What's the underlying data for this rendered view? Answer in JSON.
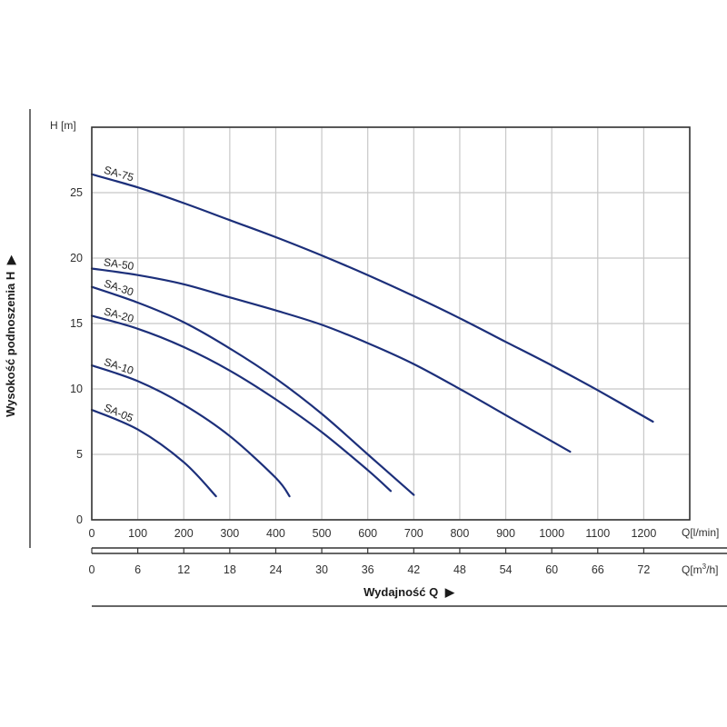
{
  "chart_data": {
    "type": "line",
    "y_axis": {
      "label": "H [m]",
      "title": "Wysokość podnoszenia H",
      "ticks": [
        0,
        5,
        10,
        15,
        20,
        25
      ],
      "ylim": [
        0,
        30
      ]
    },
    "x_axis_primary": {
      "unit": "Q[l/min]",
      "ticks": [
        0,
        100,
        200,
        300,
        400,
        500,
        600,
        700,
        800,
        900,
        1000,
        1100,
        1200
      ],
      "xlim": [
        0,
        1300
      ]
    },
    "x_axis_secondary": {
      "unit_prefix": "Q[m",
      "unit_sup": "3",
      "unit_suffix": "/h]",
      "ticks": [
        0,
        6,
        12,
        18,
        24,
        30,
        36,
        42,
        48,
        54,
        60,
        66,
        72
      ]
    },
    "x_title": "Wydajność Q",
    "grid": true,
    "colors": {
      "curve": "#1c2f7a",
      "grid": "#c8c8c8",
      "frame": "#333333"
    },
    "series": [
      {
        "name": "SA-75",
        "x": [
          0,
          100,
          200,
          300,
          400,
          500,
          600,
          700,
          800,
          900,
          1000,
          1100,
          1220
        ],
        "y": [
          26.4,
          25.4,
          24.2,
          22.9,
          21.6,
          20.2,
          18.7,
          17.1,
          15.4,
          13.6,
          11.8,
          9.9,
          7.5
        ]
      },
      {
        "name": "SA-50",
        "x": [
          0,
          100,
          200,
          300,
          400,
          500,
          600,
          700,
          800,
          900,
          1000,
          1040
        ],
        "y": [
          19.2,
          18.7,
          18.0,
          17.0,
          16.0,
          14.9,
          13.5,
          11.9,
          10.0,
          8.0,
          6.0,
          5.2
        ]
      },
      {
        "name": "SA-30",
        "x": [
          0,
          100,
          200,
          300,
          400,
          500,
          600,
          700
        ],
        "y": [
          17.8,
          16.6,
          15.1,
          13.1,
          10.8,
          8.1,
          5.0,
          1.9
        ]
      },
      {
        "name": "SA-20",
        "x": [
          0,
          100,
          200,
          300,
          400,
          500,
          600,
          650
        ],
        "y": [
          15.6,
          14.6,
          13.2,
          11.4,
          9.2,
          6.7,
          3.8,
          2.2
        ]
      },
      {
        "name": "SA-10",
        "x": [
          0,
          100,
          200,
          300,
          400,
          430
        ],
        "y": [
          11.8,
          10.6,
          8.8,
          6.4,
          3.2,
          1.8
        ]
      },
      {
        "name": "SA-05",
        "x": [
          0,
          100,
          200,
          270
        ],
        "y": [
          8.4,
          6.9,
          4.4,
          1.8
        ]
      }
    ]
  }
}
